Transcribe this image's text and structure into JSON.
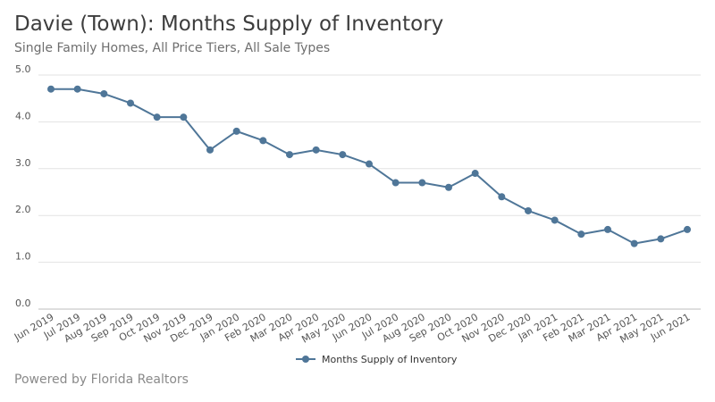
{
  "header": {
    "title": "Davie (Town): Months Supply of Inventory",
    "subtitle": "Single Family Homes, All Price Tiers, All Sale Types"
  },
  "footer": {
    "text": "Powered by Florida Realtors"
  },
  "chart_data": {
    "type": "line",
    "title": "Davie (Town): Months Supply of Inventory",
    "subtitle": "Single Family Homes, All Price Tiers, All Sale Types",
    "xlabel": "",
    "ylabel": "",
    "categories": [
      "Jun 2019",
      "Jul 2019",
      "Aug 2019",
      "Sep 2019",
      "Oct 2019",
      "Nov 2019",
      "Dec 2019",
      "Jan 2020",
      "Feb 2020",
      "Mar 2020",
      "Apr 2020",
      "May 2020",
      "Jun 2020",
      "Jul 2020",
      "Aug 2020",
      "Sep 2020",
      "Oct 2020",
      "Nov 2020",
      "Dec 2020",
      "Jan 2021",
      "Feb 2021",
      "Mar 2021",
      "Apr 2021",
      "May 2021",
      "Jun 2021"
    ],
    "series": [
      {
        "name": "Months Supply of Inventory",
        "color": "#4f7698",
        "values": [
          4.7,
          4.7,
          4.6,
          4.4,
          4.1,
          4.1,
          3.4,
          3.8,
          3.6,
          3.3,
          3.4,
          3.3,
          3.1,
          2.7,
          2.7,
          2.6,
          2.9,
          2.4,
          2.1,
          1.9,
          1.6,
          1.7,
          1.4,
          1.5,
          1.7
        ]
      }
    ],
    "ylim": [
      0,
      5
    ],
    "yticks": [
      "0.0",
      "1.0",
      "2.0",
      "3.0",
      "4.0",
      "5.0"
    ],
    "grid": true,
    "legend": "bottom-center"
  }
}
